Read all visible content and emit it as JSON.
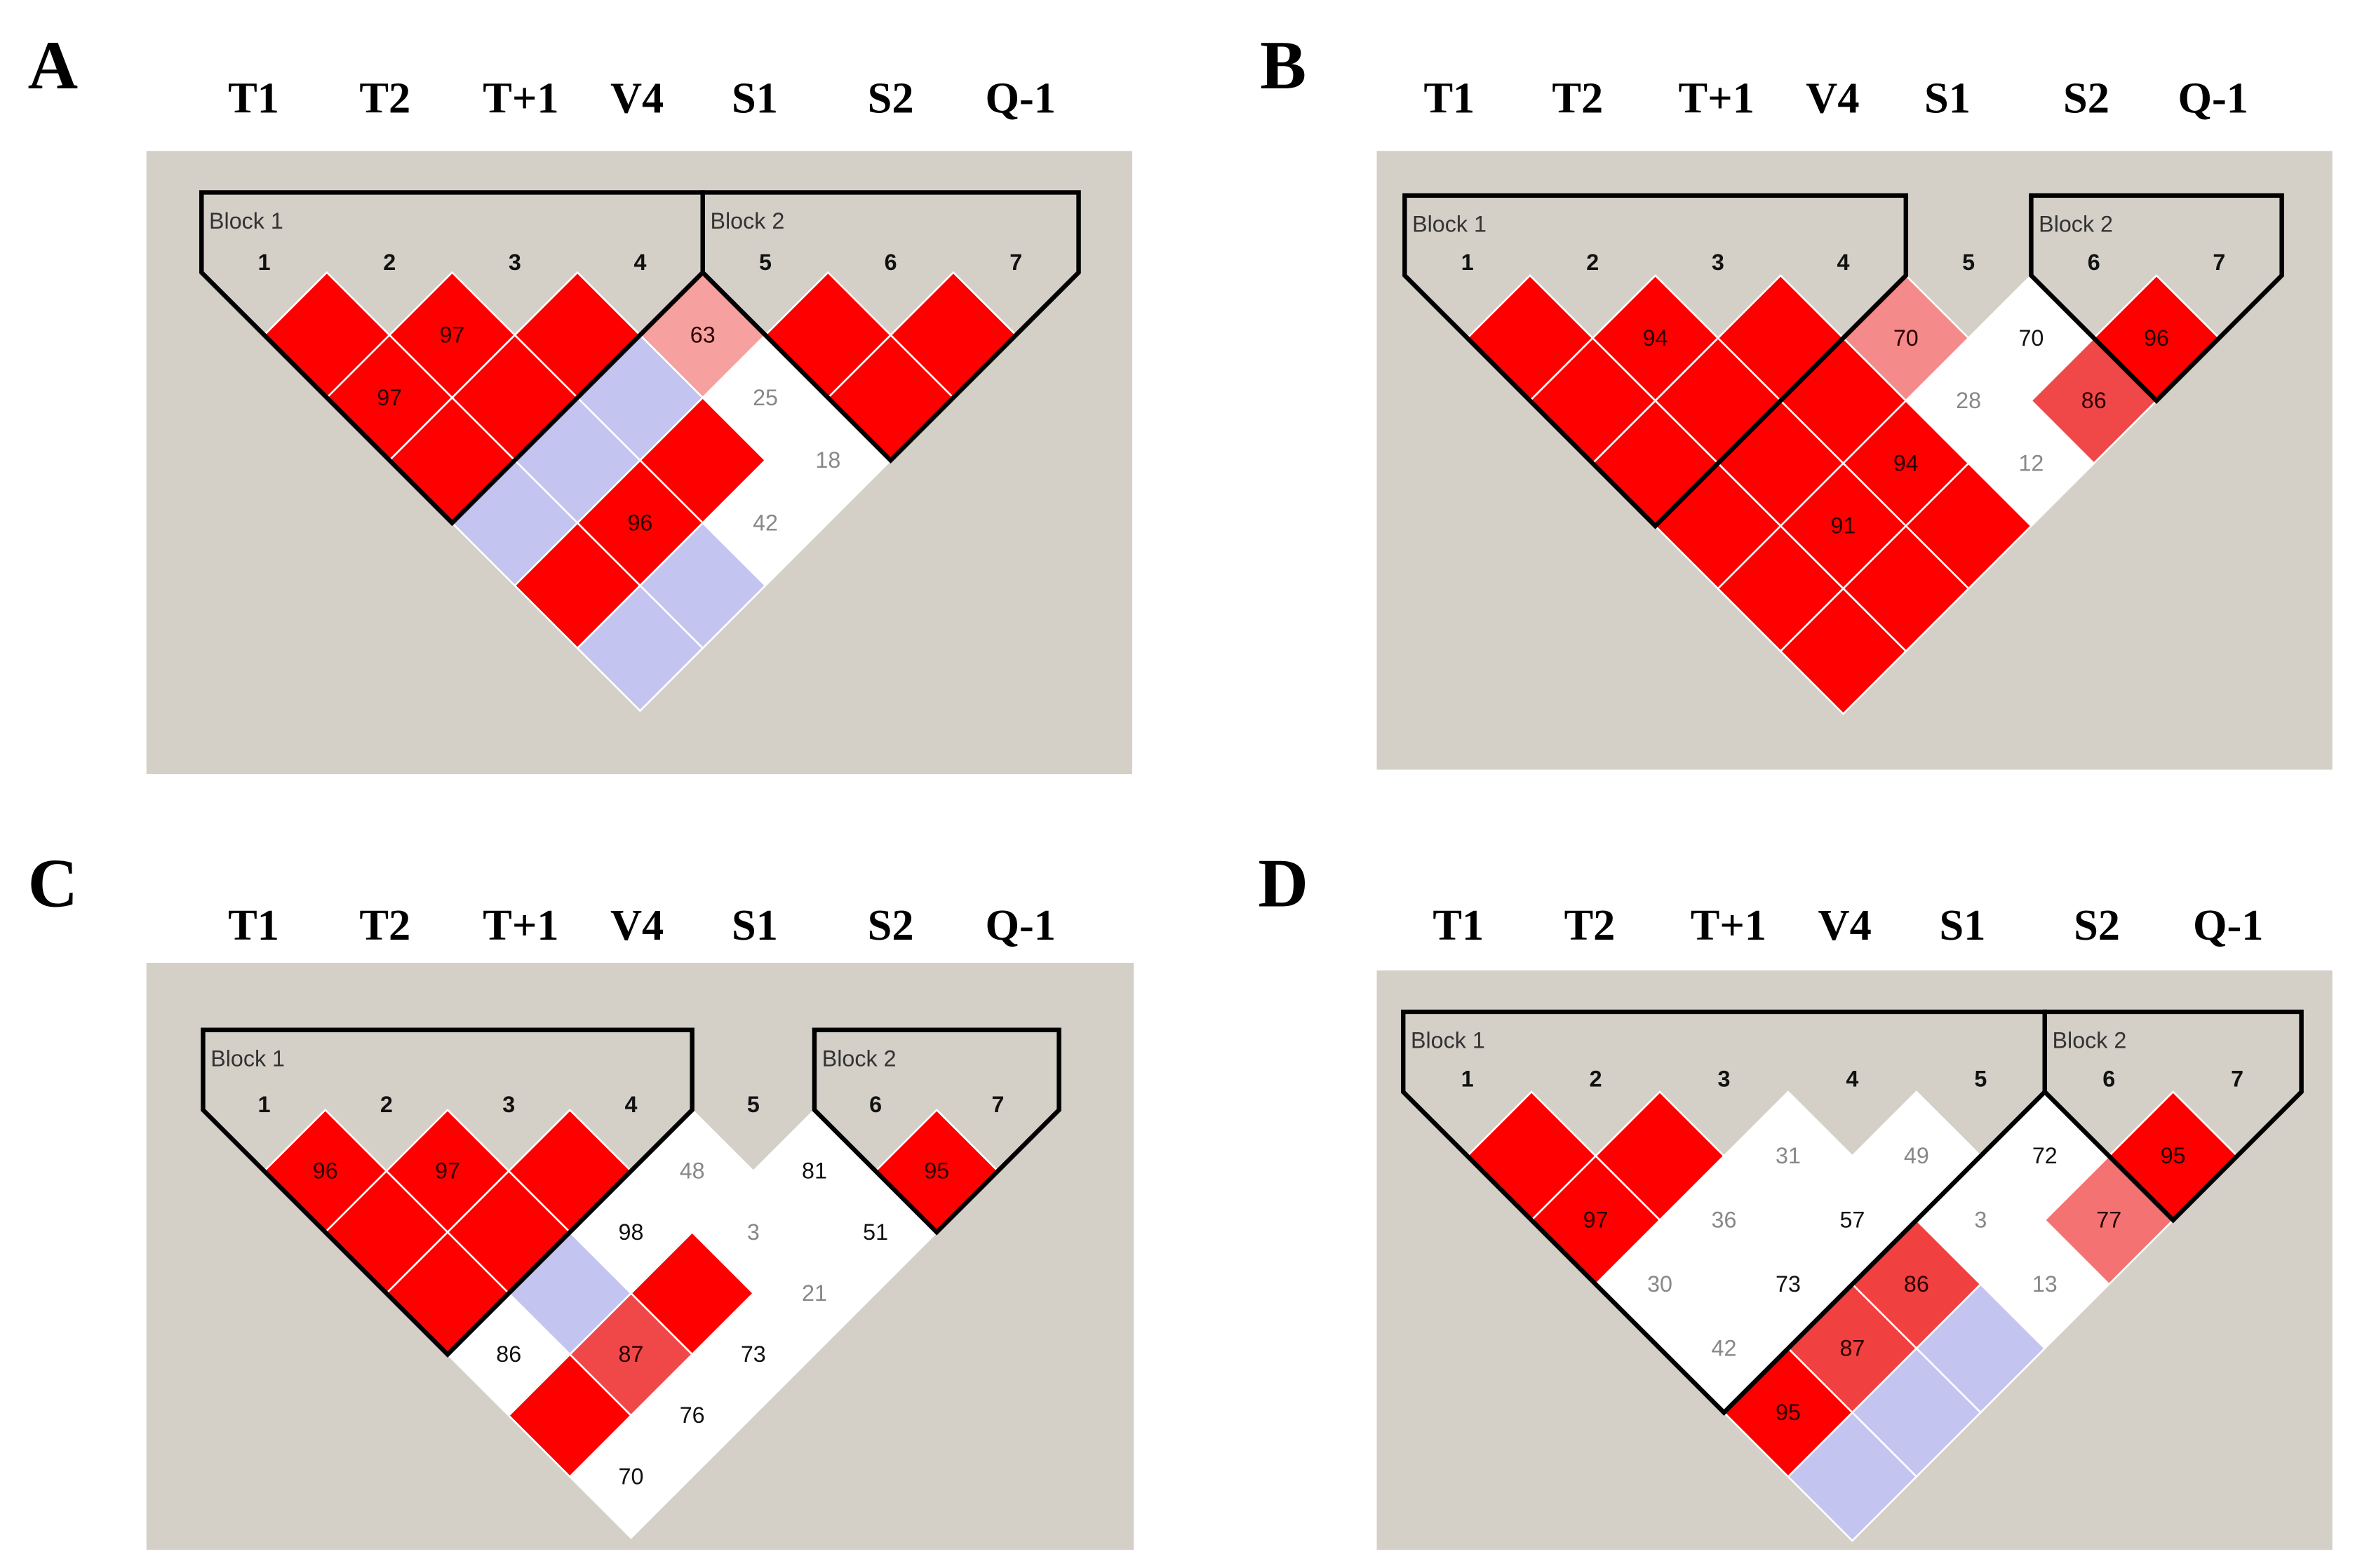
{
  "panels": [
    {
      "label": "A",
      "snps": [
        "T1",
        "T2",
        "T+1",
        "V4",
        "S1",
        "S2",
        "Q-1"
      ],
      "markers": [
        "1",
        "2",
        "3",
        "4",
        "5",
        "6",
        "7"
      ],
      "blocks": [
        {
          "name": "Block 1",
          "markers": [
            "1",
            "2",
            "3",
            "4"
          ]
        },
        {
          "name": "Block 2",
          "markers": [
            "5",
            "6",
            "7"
          ]
        }
      ],
      "ld_rows": [
        [
          {
            "color": "#ff0000"
          },
          {
            "color": "#ff0000",
            "value": 97,
            "text_color": "#2a0000"
          },
          {
            "color": "#ff0000"
          },
          {
            "color": "#f7a0a0",
            "value": 63,
            "text_color": "#2a0000"
          },
          {
            "color": "#ff0000"
          },
          {
            "color": "#ff0000"
          }
        ],
        [
          {
            "color": "#ff0000",
            "value": 97,
            "text_color": "#2a0000"
          },
          {
            "color": "#ff0000"
          },
          {
            "color": "#c4c4f0"
          },
          {
            "color": "#ffffff",
            "value": 25,
            "text_color": "#888888"
          },
          {
            "color": "#ff0000"
          }
        ],
        [
          {
            "color": "#ff0000"
          },
          {
            "color": "#c4c4f0"
          },
          {
            "color": "#ff0000"
          },
          {
            "color": "#ffffff",
            "value": 18,
            "text_color": "#888888"
          }
        ],
        [
          {
            "color": "#c4c4f0"
          },
          {
            "color": "#ff0000",
            "value": 96,
            "text_color": "#2a0000"
          },
          {
            "color": "#ffffff",
            "value": 42,
            "text_color": "#888888"
          }
        ],
        [
          {
            "color": "#ff0000"
          },
          {
            "color": "#c4c4f0"
          }
        ],
        [
          {
            "color": "#c4c4f0"
          }
        ]
      ]
    },
    {
      "label": "B",
      "snps": [
        "T1",
        "T2",
        "T+1",
        "V4",
        "S1",
        "S2",
        "Q-1"
      ],
      "markers": [
        "1",
        "2",
        "3",
        "4",
        "5",
        "6",
        "7"
      ],
      "blocks": [
        {
          "name": "Block 1",
          "markers": [
            "1",
            "2",
            "3",
            "4"
          ]
        },
        {
          "name": "Block 2",
          "markers": [
            "6",
            "7"
          ]
        }
      ],
      "ld_rows": [
        [
          {
            "color": "#ff0000"
          },
          {
            "color": "#ff0000",
            "value": 94,
            "text_color": "#2a0000"
          },
          {
            "color": "#ff0000"
          },
          {
            "color": "#f58a8a",
            "value": 70,
            "text_color": "#2a0000"
          },
          {
            "color": "#ffffff",
            "value": 70,
            "text_color": "#111111"
          },
          {
            "color": "#ff0000",
            "value": 96,
            "text_color": "#2a0000"
          }
        ],
        [
          {
            "color": "#ff0000"
          },
          {
            "color": "#ff0000"
          },
          {
            "color": "#ff0000"
          },
          {
            "color": "#ffffff",
            "value": 28,
            "text_color": "#888888"
          },
          {
            "color": "#f04848",
            "value": 86,
            "text_color": "#2a0000"
          }
        ],
        [
          {
            "color": "#ff0000"
          },
          {
            "color": "#ff0000"
          },
          {
            "color": "#ff0000",
            "value": 94,
            "text_color": "#2a0000"
          },
          {
            "color": "#ffffff",
            "value": 12,
            "text_color": "#888888"
          }
        ],
        [
          {
            "color": "#ff0000"
          },
          {
            "color": "#ff0000",
            "value": 91,
            "text_color": "#2a0000"
          },
          {
            "color": "#ff0000"
          }
        ],
        [
          {
            "color": "#ff0000"
          },
          {
            "color": "#ff0000"
          }
        ],
        [
          {
            "color": "#ff0000"
          }
        ]
      ]
    },
    {
      "label": "C",
      "snps": [
        "T1",
        "T2",
        "T+1",
        "V4",
        "S1",
        "S2",
        "Q-1"
      ],
      "markers": [
        "1",
        "2",
        "3",
        "4",
        "5",
        "6",
        "7"
      ],
      "blocks": [
        {
          "name": "Block 1",
          "markers": [
            "1",
            "2",
            "3",
            "4"
          ]
        },
        {
          "name": "Block 2",
          "markers": [
            "6",
            "7"
          ]
        }
      ],
      "ld_rows": [
        [
          {
            "color": "#ff0000",
            "value": 96,
            "text_color": "#2a0000"
          },
          {
            "color": "#ff0000",
            "value": 97,
            "text_color": "#2a0000"
          },
          {
            "color": "#ff0000"
          },
          {
            "color": "#ffffff",
            "value": 48,
            "text_color": "#888888"
          },
          {
            "color": "#ffffff",
            "value": 81,
            "text_color": "#111111"
          },
          {
            "color": "#ff0000",
            "value": 95,
            "text_color": "#2a0000"
          }
        ],
        [
          {
            "color": "#ff0000"
          },
          {
            "color": "#ff0000"
          },
          {
            "color": "#ffffff",
            "value": 98,
            "text_color": "#111111"
          },
          {
            "color": "#ffffff",
            "value": 3,
            "text_color": "#888888"
          },
          {
            "color": "#ffffff",
            "value": 51,
            "text_color": "#111111"
          }
        ],
        [
          {
            "color": "#ff0000"
          },
          {
            "color": "#c4c4f0"
          },
          {
            "color": "#ff0000"
          },
          {
            "color": "#ffffff",
            "value": 21,
            "text_color": "#888888"
          }
        ],
        [
          {
            "color": "#ffffff",
            "value": 86,
            "text_color": "#111111"
          },
          {
            "color": "#f04848",
            "value": 87,
            "text_color": "#2a0000"
          },
          {
            "color": "#ffffff",
            "value": 73,
            "text_color": "#111111"
          }
        ],
        [
          {
            "color": "#ff0000"
          },
          {
            "color": "#ffffff",
            "value": 76,
            "text_color": "#111111"
          }
        ],
        [
          {
            "color": "#ffffff",
            "value": 70,
            "text_color": "#111111"
          }
        ]
      ]
    },
    {
      "label": "D",
      "snps": [
        "T1",
        "T2",
        "T+1",
        "V4",
        "S1",
        "S2",
        "Q-1"
      ],
      "markers": [
        "1",
        "2",
        "3",
        "4",
        "5",
        "6",
        "7"
      ],
      "blocks": [
        {
          "name": "Block 1",
          "markers": [
            "1",
            "2",
            "3",
            "4",
            "5"
          ]
        },
        {
          "name": "Block 2",
          "markers": [
            "6",
            "7"
          ]
        }
      ],
      "ld_rows": [
        [
          {
            "color": "#ff0000"
          },
          {
            "color": "#ff0000"
          },
          {
            "color": "#ffffff",
            "value": 31,
            "text_color": "#888888"
          },
          {
            "color": "#ffffff",
            "value": 49,
            "text_color": "#888888"
          },
          {
            "color": "#ffffff",
            "value": 72,
            "text_color": "#111111"
          },
          {
            "color": "#ff0000",
            "value": 95,
            "text_color": "#2a0000"
          }
        ],
        [
          {
            "color": "#ff0000",
            "value": 97,
            "text_color": "#2a0000"
          },
          {
            "color": "#ffffff",
            "value": 36,
            "text_color": "#888888"
          },
          {
            "color": "#ffffff",
            "value": 57,
            "text_color": "#111111"
          },
          {
            "color": "#ffffff",
            "value": 3,
            "text_color": "#888888"
          },
          {
            "color": "#f47272",
            "value": 77,
            "text_color": "#2a0000"
          }
        ],
        [
          {
            "color": "#ffffff",
            "value": 30,
            "text_color": "#888888"
          },
          {
            "color": "#ffffff",
            "value": 73,
            "text_color": "#111111"
          },
          {
            "color": "#f04040",
            "value": 86,
            "text_color": "#2a0000"
          },
          {
            "color": "#ffffff",
            "value": 13,
            "text_color": "#888888"
          }
        ],
        [
          {
            "color": "#ffffff",
            "value": 42,
            "text_color": "#888888"
          },
          {
            "color": "#f04040",
            "value": 87,
            "text_color": "#2a0000"
          },
          {
            "color": "#c4c4f0"
          }
        ],
        [
          {
            "color": "#ff0000",
            "value": 95,
            "text_color": "#2a0000"
          },
          {
            "color": "#c4c4f0"
          }
        ],
        [
          {
            "color": "#c4c4f0"
          }
        ]
      ]
    }
  ]
}
